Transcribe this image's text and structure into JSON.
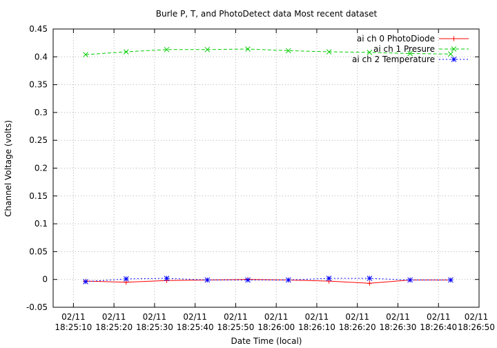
{
  "chart_data": {
    "type": "line",
    "title": "Burle P, T, and PhotoDetect data Most recent dataset",
    "xlabel": "Date Time (local)",
    "ylabel": "Channel Voltage (volts)",
    "xlim": [
      "02/11 18:25:05",
      "02/11 18:26:50"
    ],
    "ylim": [
      -0.05,
      0.45
    ],
    "grid": true,
    "legend_position": "top-right",
    "x_ticks": [
      {
        "date": "02/11",
        "time": "18:25:10"
      },
      {
        "date": "02/11",
        "time": "18:25:20"
      },
      {
        "date": "02/11",
        "time": "18:25:30"
      },
      {
        "date": "02/11",
        "time": "18:25:40"
      },
      {
        "date": "02/11",
        "time": "18:25:50"
      },
      {
        "date": "02/11",
        "time": "18:26:00"
      },
      {
        "date": "02/11",
        "time": "18:26:10"
      },
      {
        "date": "02/11",
        "time": "18:26:20"
      },
      {
        "date": "02/11",
        "time": "18:26:30"
      },
      {
        "date": "02/11",
        "time": "18:26:40"
      },
      {
        "date": "02/11",
        "time": "18:26:50"
      }
    ],
    "y_ticks": [
      "-0.05",
      "0",
      "0.05",
      "0.1",
      "0.15",
      "0.2",
      "0.25",
      "0.3",
      "0.35",
      "0.4",
      "0.45"
    ],
    "x": [
      "02/11 18:25:13",
      "02/11 18:25:23",
      "02/11 18:25:33",
      "02/11 18:25:43",
      "02/11 18:25:53",
      "02/11 18:26:03",
      "02/11 18:26:13",
      "02/11 18:26:23",
      "02/11 18:26:33",
      "02/11 18:26:43"
    ],
    "series": [
      {
        "name": "ai ch 0 PhotoDiode",
        "color": "#ff0000",
        "marker": "plus",
        "dash": "solid",
        "values": [
          -0.003,
          -0.005,
          -0.002,
          -0.001,
          0.0,
          -0.001,
          -0.003,
          -0.007,
          -0.001,
          -0.001
        ]
      },
      {
        "name": "ai ch 1 Presure",
        "color": "#00cc00",
        "marker": "cross",
        "dash": "dashed",
        "values": [
          0.404,
          0.409,
          0.413,
          0.413,
          0.414,
          0.411,
          0.409,
          0.408,
          0.406,
          0.405
        ]
      },
      {
        "name": "ai ch 2 Temperature",
        "color": "#0000ff",
        "marker": "star",
        "dash": "dotted",
        "values": [
          -0.004,
          0.001,
          0.002,
          -0.001,
          -0.001,
          -0.001,
          0.002,
          0.002,
          -0.001,
          -0.001
        ]
      }
    ]
  }
}
